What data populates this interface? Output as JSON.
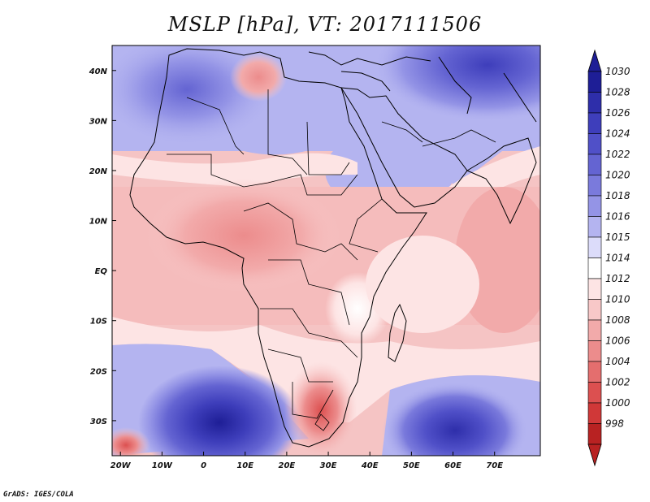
{
  "title": "MSLP [hPa], VT: 2017111506",
  "footer": "GrADS: IGES/COLA",
  "map": {
    "lon_range": [
      -22,
      81
    ],
    "lat_range": [
      -37,
      45
    ],
    "lat_ticks": [
      {
        "value": 40,
        "label": "40N"
      },
      {
        "value": 30,
        "label": "30N"
      },
      {
        "value": 20,
        "label": "20N"
      },
      {
        "value": 10,
        "label": "10N"
      },
      {
        "value": 0,
        "label": "EQ"
      },
      {
        "value": -10,
        "label": "10S"
      },
      {
        "value": -20,
        "label": "20S"
      },
      {
        "value": -30,
        "label": "30S"
      }
    ],
    "lon_ticks": [
      {
        "value": -20,
        "label": "20W"
      },
      {
        "value": -10,
        "label": "10W"
      },
      {
        "value": 0,
        "label": "0"
      },
      {
        "value": 10,
        "label": "10E"
      },
      {
        "value": 20,
        "label": "20E"
      },
      {
        "value": 30,
        "label": "30E"
      },
      {
        "value": 40,
        "label": "40E"
      },
      {
        "value": 50,
        "label": "50E"
      },
      {
        "value": 60,
        "label": "60E"
      },
      {
        "value": 70,
        "label": "70E"
      }
    ]
  },
  "colorbar": {
    "levels": [
      "1030",
      "1028",
      "1026",
      "1024",
      "1022",
      "1020",
      "1018",
      "1016",
      "1015",
      "1014",
      "1012",
      "1010",
      "1008",
      "1006",
      "1004",
      "1002",
      "1000",
      "998"
    ],
    "colors": [
      "#1e1e96",
      "#2e2eaa",
      "#3e3ebb",
      "#5050c8",
      "#6464d2",
      "#7a7adc",
      "#9494e6",
      "#b4b4f0",
      "#dcdcfa",
      "#ffffff",
      "#fde4e4",
      "#f8c8c8",
      "#f2aaaa",
      "#ec8c8c",
      "#e46e6e",
      "#dc5050",
      "#d03838",
      "#b82222"
    ]
  }
}
